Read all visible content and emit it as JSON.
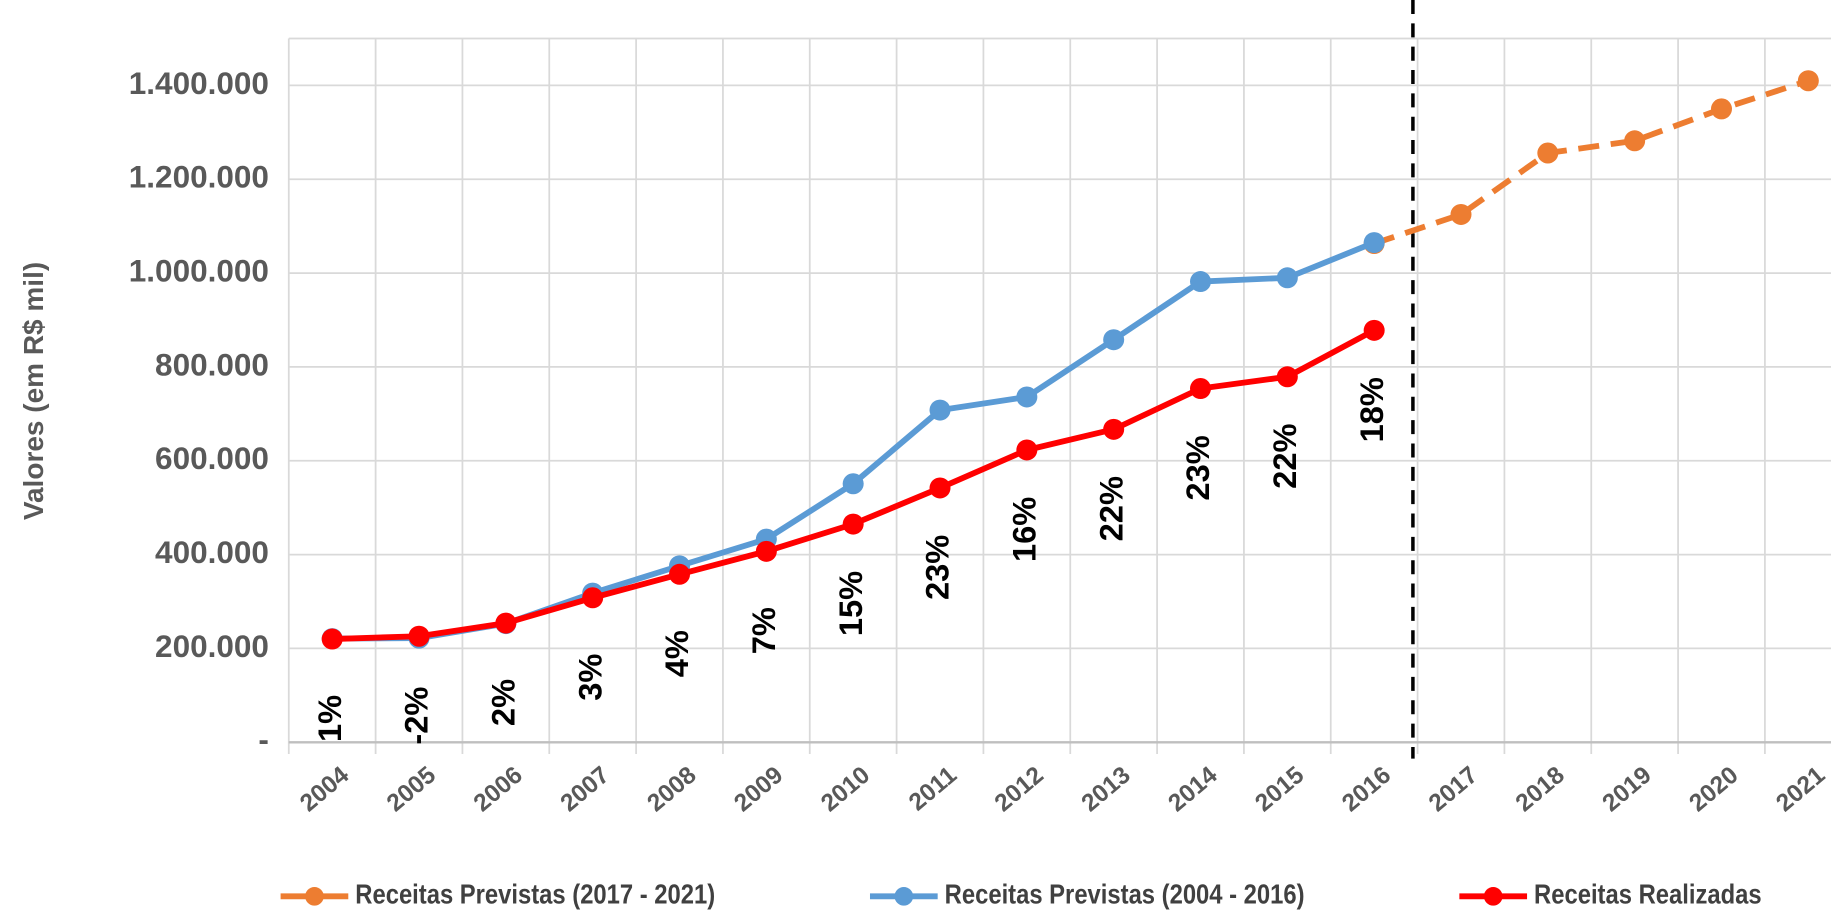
{
  "chart_data": {
    "type": "line",
    "y_label": "Valores (em R$ mil)",
    "categories": [
      "2004",
      "2005",
      "2006",
      "2007",
      "2008",
      "2009",
      "2010",
      "2011",
      "2012",
      "2013",
      "2014",
      "2015",
      "2016",
      "2017",
      "2018",
      "2019",
      "2020",
      "2021"
    ],
    "series": [
      {
        "name": "Receitas Previstas (2017 - 2021)",
        "color": "#ed7d31",
        "dashed": true,
        "values": [
          null,
          null,
          null,
          null,
          null,
          null,
          null,
          null,
          null,
          null,
          null,
          null,
          1063000,
          1125000,
          1256000,
          1282000,
          1350000,
          1410000
        ]
      },
      {
        "name": "Receitas Previstas (2004 - 2016)",
        "color": "#5b9bd5",
        "values": [
          221000,
          222000,
          253000,
          318000,
          376000,
          433000,
          551000,
          708000,
          736000,
          858000,
          982000,
          990000,
          1065000,
          null,
          null,
          null,
          null,
          null
        ]
      },
      {
        "name": "Receitas Realizadas",
        "color": "#ff0000",
        "values": [
          220000,
          226000,
          254000,
          308000,
          358000,
          407000,
          465000,
          542000,
          623000,
          667000,
          754000,
          779000,
          878000,
          null,
          null,
          null,
          null,
          null
        ]
      }
    ],
    "annotations": [
      "1%",
      "-2%",
      "2%",
      "3%",
      "4%",
      "7%",
      "15%",
      "23%",
      "16%",
      "22%",
      "23%",
      "22%",
      "18%"
    ],
    "ylim": [
      0,
      1500000
    ],
    "yticks": [
      {
        "value": 0,
        "label": "-"
      },
      {
        "value": 200000,
        "label": "200.000"
      },
      {
        "value": 400000,
        "label": "400.000"
      },
      {
        "value": 600000,
        "label": "600.000"
      },
      {
        "value": 800000,
        "label": "800.000"
      },
      {
        "value": 1000000,
        "label": "1.000.000"
      },
      {
        "value": 1200000,
        "label": "1.200.000"
      },
      {
        "value": 1400000,
        "label": "1.400.000"
      }
    ],
    "grid": true,
    "legend": "bottom"
  }
}
